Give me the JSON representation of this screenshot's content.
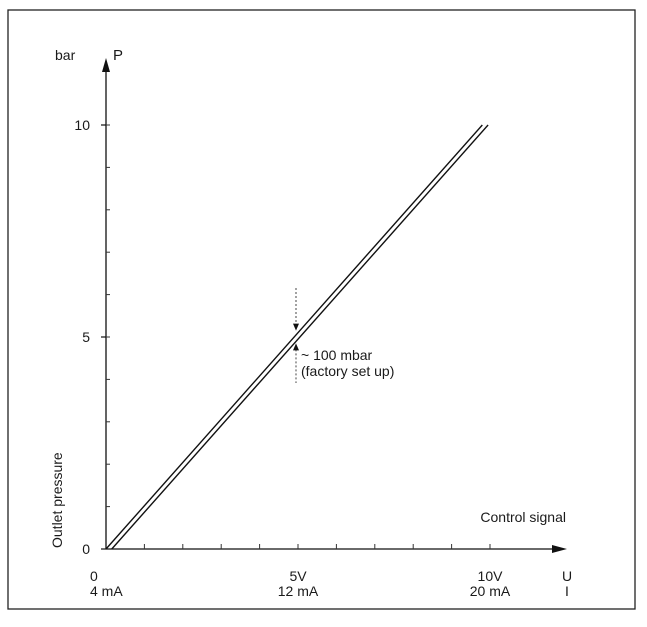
{
  "chart_data": {
    "type": "line",
    "x_axis": {
      "label": "Control signal",
      "unit_rows": [
        "U",
        "I"
      ],
      "ticks": [
        {
          "value": 0,
          "lines": [
            "0",
            "4 mA"
          ]
        },
        {
          "value": 5,
          "lines": [
            "5V",
            "12 mA"
          ]
        },
        {
          "value": 10,
          "lines": [
            "10V",
            "20 mA"
          ]
        }
      ],
      "range": [
        0,
        10
      ],
      "minor_step": 1
    },
    "y_axis": {
      "label": "Outlet pressure",
      "unit": "bar",
      "symbol": "P",
      "ticks": [
        {
          "value": 0,
          "label": "0"
        },
        {
          "value": 5,
          "label": "5"
        },
        {
          "value": 10,
          "label": "10"
        }
      ],
      "range": [
        0,
        10
      ],
      "minor_step": 1
    },
    "series": [
      {
        "x": [
          0,
          9.8
        ],
        "y": [
          0,
          10
        ]
      },
      {
        "x": [
          0.15,
          9.95
        ],
        "y": [
          0,
          10
        ]
      }
    ],
    "annotation": {
      "at_x": 5,
      "band_y": [
        4.85,
        5.15
      ],
      "lines": [
        "~ 100 mbar",
        "(factory set up)"
      ]
    },
    "grid": false
  }
}
